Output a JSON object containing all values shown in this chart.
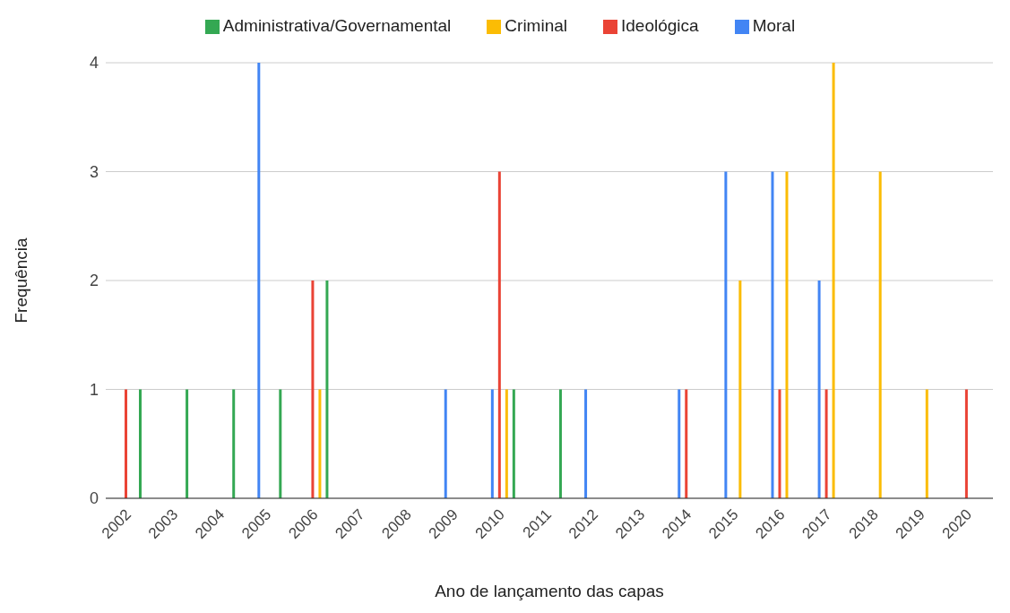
{
  "chart_data": {
    "type": "bar",
    "xlabel": "Ano de lançamento das capas",
    "ylabel": "Frequência",
    "categories": [
      "2002",
      "2003",
      "2004",
      "2005",
      "2006",
      "2007",
      "2008",
      "2009",
      "2010",
      "2011",
      "2012",
      "2013",
      "2014",
      "2015",
      "2016",
      "2017",
      "2018",
      "2019",
      "2020"
    ],
    "series": [
      {
        "name": "Moral",
        "color": "#4285f4",
        "values": [
          0,
          0,
          0,
          4,
          0,
          0,
          0,
          1,
          1,
          0,
          1,
          0,
          1,
          3,
          3,
          2,
          0,
          0,
          0
        ]
      },
      {
        "name": "Ideológica",
        "color": "#ea4335",
        "values": [
          1,
          0,
          0,
          0,
          2,
          0,
          0,
          0,
          3,
          0,
          0,
          0,
          1,
          0,
          1,
          1,
          0,
          0,
          1
        ]
      },
      {
        "name": "Criminal",
        "color": "#fbbc04",
        "values": [
          0,
          0,
          0,
          0,
          1,
          0,
          0,
          0,
          1,
          0,
          0,
          0,
          0,
          2,
          3,
          4,
          3,
          1,
          0
        ]
      },
      {
        "name": "Administrativa/Governamental",
        "color": "#34a853",
        "values": [
          1,
          1,
          1,
          1,
          2,
          0,
          0,
          0,
          1,
          1,
          0,
          0,
          0,
          0,
          0,
          0,
          0,
          0,
          0
        ]
      }
    ],
    "ylim": [
      0,
      4
    ],
    "yticks": [
      0,
      1,
      2,
      3,
      4
    ],
    "grid": "y",
    "legend": "top"
  }
}
